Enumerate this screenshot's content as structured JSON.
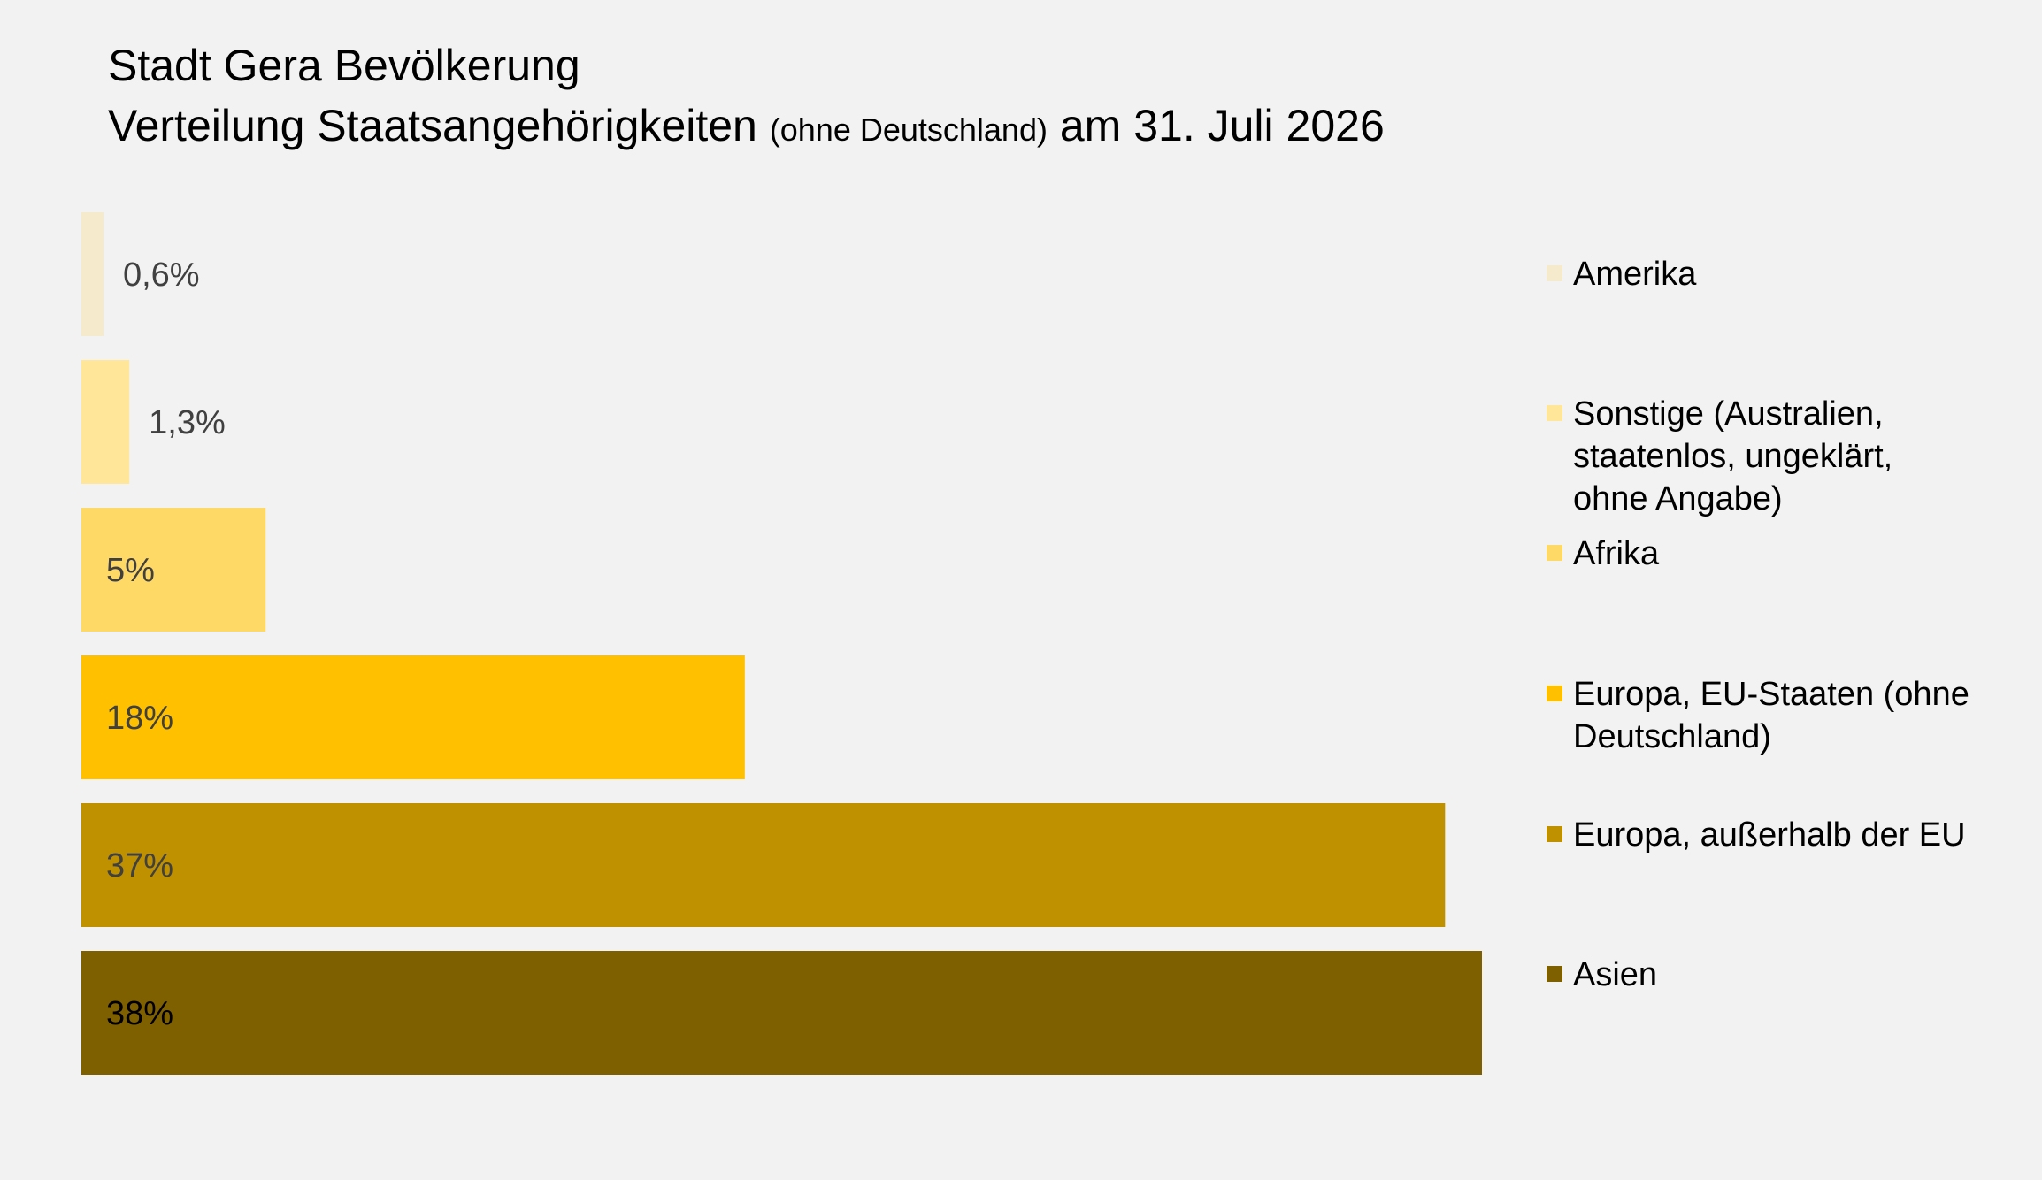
{
  "title": {
    "line1": "Stadt Gera Bevölkerung",
    "line2_part1": "Verteilung Staatsangehörigkeiten ",
    "line2_small": "(ohne Deutschland)",
    "line2_part2": " am 31. Juli 2026"
  },
  "chart_data": {
    "type": "bar",
    "orientation": "horizontal",
    "title": "Stadt Gera Bevölkerung Verteilung Staatsangehörigkeiten (ohne Deutschland) am 31. Juli 2026",
    "xlim": [
      0,
      38
    ],
    "grid": false,
    "legend_position": "right",
    "series": [
      {
        "name": "Amerika",
        "value": 0.6,
        "label": "0,6%",
        "color": "#f5ebcc",
        "label_color": "#404040",
        "legend_lines": [
          "Amerika"
        ]
      },
      {
        "name": "Sonstige (Australien, staatenlos, ungeklärt, ohne Angabe)",
        "value": 1.3,
        "label": "1,3%",
        "color": "#ffe699",
        "label_color": "#404040",
        "legend_lines": [
          "Sonstige (Australien,",
          "staatenlos, ungeklärt,",
          "ohne Angabe)"
        ]
      },
      {
        "name": "Afrika",
        "value": 5,
        "label": "5%",
        "color": "#ffd966",
        "label_color": "#404040",
        "legend_lines": [
          "Afrika"
        ]
      },
      {
        "name": "Europa, EU-Staaten (ohne Deutschland)",
        "value": 18,
        "label": "18%",
        "color": "#ffc000",
        "label_color": "#404040",
        "legend_lines": [
          "Europa, EU-Staaten (ohne",
          "Deutschland)"
        ]
      },
      {
        "name": "Europa, außerhalb der EU",
        "value": 37,
        "label": "37%",
        "color": "#bf9000",
        "label_color": "#404040",
        "legend_lines": [
          "Europa, außerhalb der EU"
        ]
      },
      {
        "name": "Asien",
        "value": 38,
        "label": "38%",
        "color": "#7f6000",
        "label_color": "#000000",
        "legend_lines": [
          "Asien"
        ]
      }
    ]
  }
}
